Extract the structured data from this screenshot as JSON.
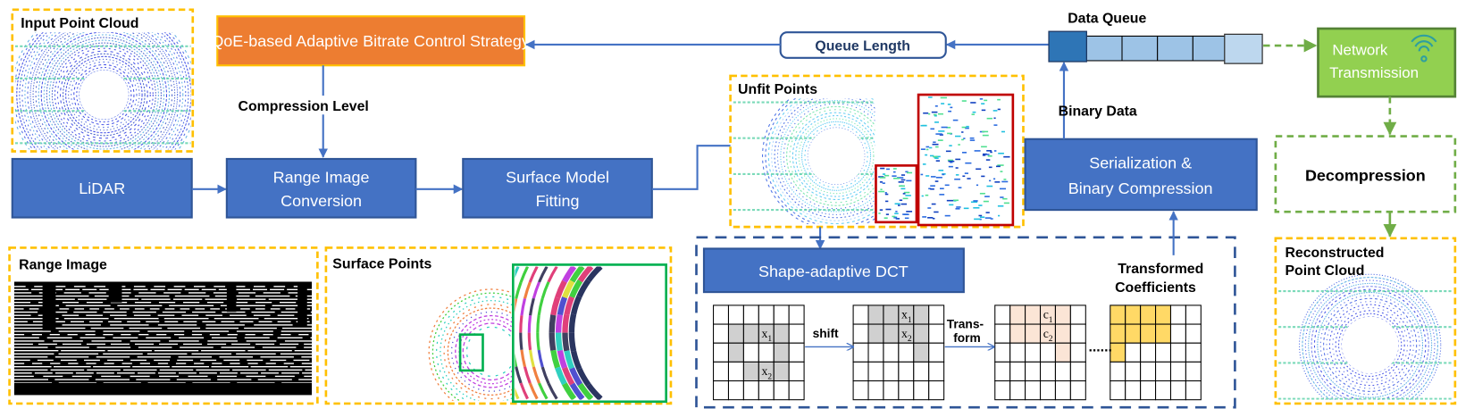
{
  "panels": {
    "input_point_cloud": "Input Point Cloud",
    "range_image": "Range Image",
    "surface_points": "Surface Points",
    "unfit_points": "Unfit Points",
    "reconstructed": [
      "Reconstructed",
      "Point Cloud"
    ]
  },
  "blocks": {
    "qoe": "QoE-based Adaptive Bitrate Control Strategy",
    "lidar": "LiDAR",
    "range_conversion": [
      "Range Image",
      "Conversion"
    ],
    "surface_fitting": [
      "Surface Model",
      "Fitting"
    ],
    "sadct": "Shape-adaptive DCT",
    "serialization": [
      "Serialization &",
      "Binary Compression"
    ],
    "network": [
      "Network",
      "Transmission"
    ],
    "decompression": "Decompression",
    "queue_length": "Queue Length"
  },
  "labels": {
    "compression_level": "Compression Level",
    "binary_data": "Binary Data",
    "data_queue": "Data Queue",
    "transformed_coefficients": [
      "Transformed",
      "Coefficients"
    ],
    "shift": "shift",
    "transform": [
      "Trans-",
      "form"
    ],
    "ellipsis": "......"
  },
  "grids": [
    {
      "fill": "#d0d0d0",
      "cells": [
        [
          1,
          1
        ],
        [
          1,
          2
        ],
        [
          1,
          3
        ],
        [
          1,
          4
        ],
        [
          2,
          1
        ],
        [
          2,
          4
        ],
        [
          3,
          2
        ],
        [
          3,
          3
        ],
        [
          3,
          4
        ]
      ],
      "symbols": [
        {
          "row": 1,
          "col": 3,
          "base": "x",
          "sub": "1"
        },
        {
          "row": 3,
          "col": 3,
          "base": "x",
          "sub": "2"
        }
      ]
    },
    {
      "fill": "#d0d0d0",
      "cells": [
        [
          0,
          1
        ],
        [
          0,
          2
        ],
        [
          0,
          3
        ],
        [
          0,
          4
        ],
        [
          1,
          1
        ],
        [
          1,
          2
        ],
        [
          1,
          3
        ],
        [
          1,
          4
        ],
        [
          2,
          4
        ]
      ],
      "symbols": [
        {
          "row": 0,
          "col": 3,
          "base": "x",
          "sub": "1"
        },
        {
          "row": 1,
          "col": 3,
          "base": "x",
          "sub": "2"
        }
      ]
    },
    {
      "fill": "#fbe5d6",
      "cells": [
        [
          0,
          1
        ],
        [
          0,
          2
        ],
        [
          0,
          3
        ],
        [
          0,
          4
        ],
        [
          1,
          1
        ],
        [
          1,
          2
        ],
        [
          1,
          3
        ],
        [
          1,
          4
        ],
        [
          2,
          4
        ]
      ],
      "symbols": [
        {
          "row": 0,
          "col": 3,
          "base": "c",
          "sub": "1"
        },
        {
          "row": 1,
          "col": 3,
          "base": "c",
          "sub": "2"
        }
      ]
    },
    {
      "fill": "#ffd966",
      "cells": [
        [
          0,
          0
        ],
        [
          0,
          1
        ],
        [
          0,
          2
        ],
        [
          0,
          3
        ],
        [
          1,
          0
        ],
        [
          1,
          1
        ],
        [
          1,
          2
        ],
        [
          1,
          3
        ],
        [
          2,
          0
        ]
      ],
      "symbols": []
    }
  ],
  "queue": {
    "slots": 4
  },
  "icons": {
    "network": "wifi-icon"
  },
  "colors": {
    "block_blue": "#4472c4",
    "block_border": "#2f5597",
    "qoe_orange": "#ed7d31",
    "panel_dash": "#ffc000",
    "network_green": "#92d050",
    "green_dash": "#70ad47",
    "dct_dash": "#2f5597",
    "queue_head": "#2e75b6",
    "queue_cell": "#9dc3e6",
    "queue_tail": "#bdd7ee",
    "highlight_red": "#c00000",
    "zoom_green": "#00b050"
  }
}
